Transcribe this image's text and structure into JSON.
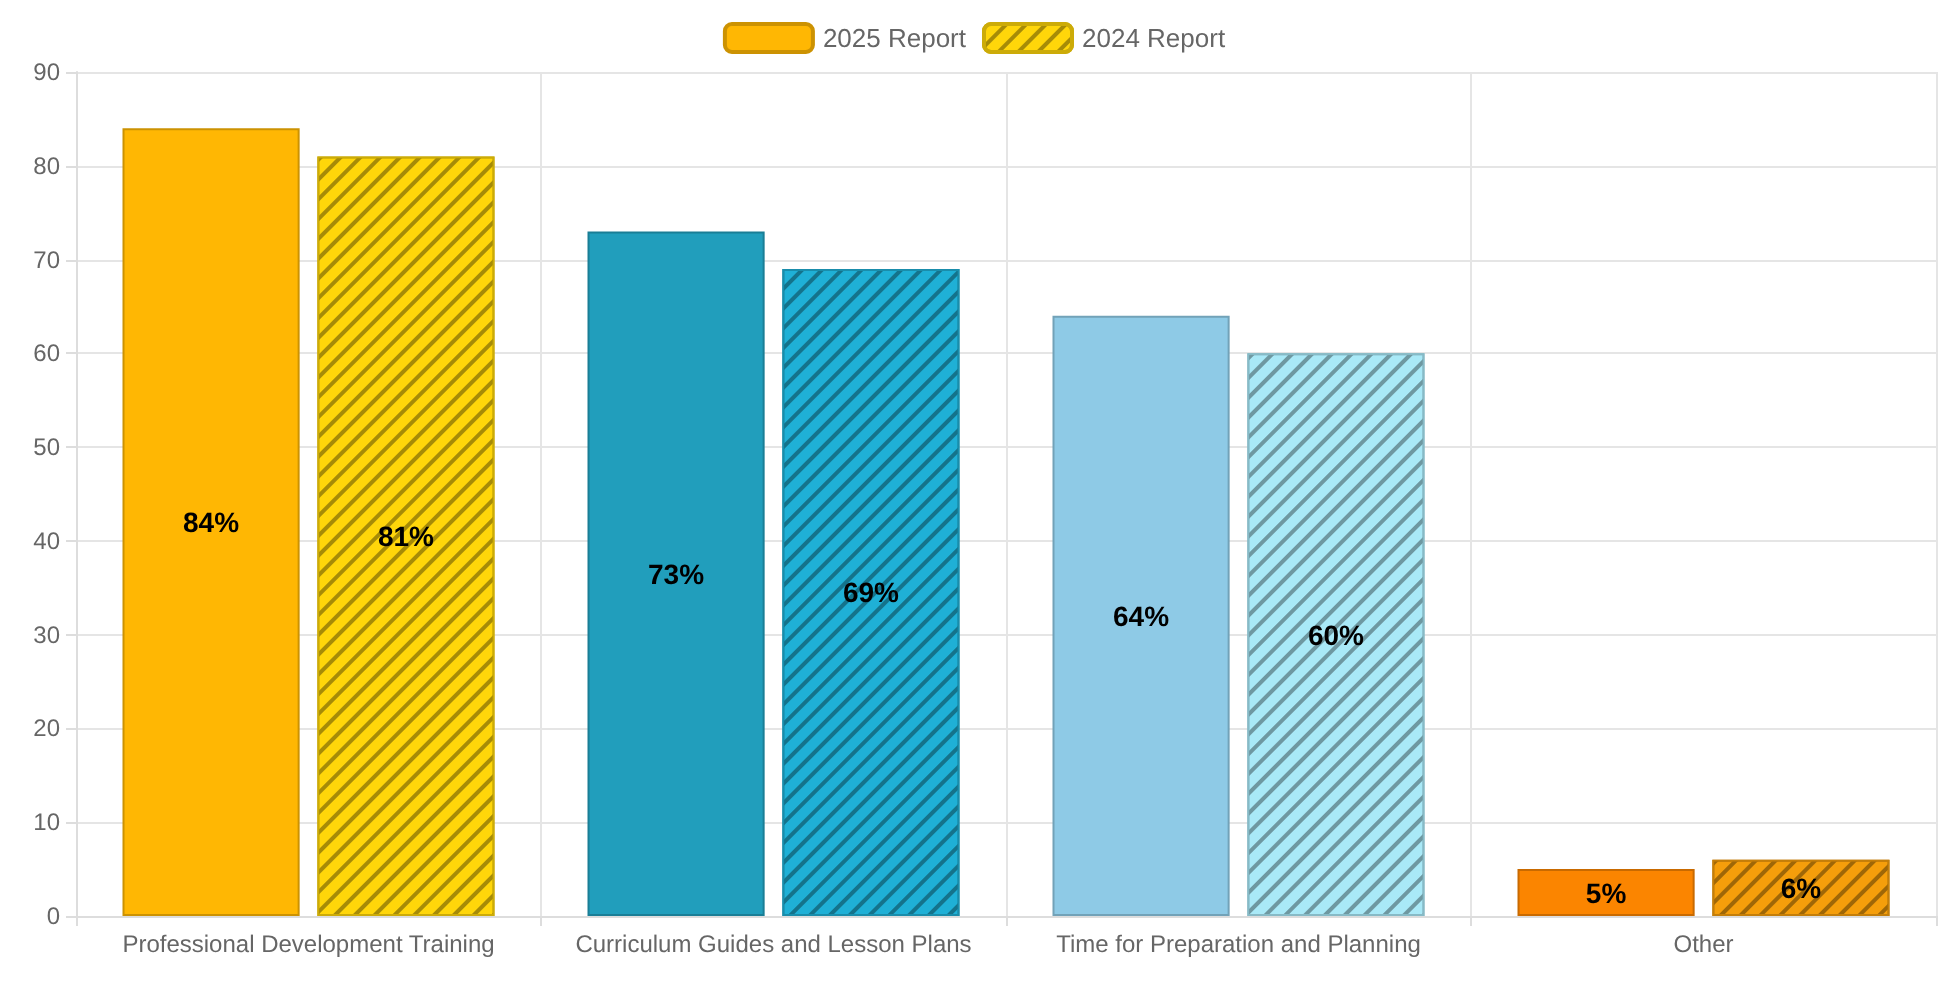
{
  "chart_data": {
    "type": "bar",
    "categories": [
      "Professional Development Training",
      "Curriculum Guides and Lesson Plans",
      "Time for Preparation and Planning",
      "Other"
    ],
    "series": [
      {
        "name": "2025 Report",
        "color": "#ffb703",
        "colors": [
          "#ffb703",
          "#219ebc",
          "#8ecae6",
          "#fb8500"
        ],
        "values": [
          84,
          73,
          64,
          5
        ],
        "value_labels": [
          "84%",
          "73%",
          "64%",
          "5%"
        ]
      },
      {
        "name": "2024 Report",
        "color": "#ffd60a",
        "colors": [
          "#ffd60a",
          "#1fb0d6",
          "#a9e9f7",
          "#f59e0b"
        ],
        "values": [
          81,
          69,
          60,
          6
        ],
        "value_labels": [
          "81%",
          "69%",
          "60%",
          "6%"
        ]
      }
    ],
    "ylim": [
      0,
      90
    ],
    "yticks": [
      0,
      10,
      20,
      30,
      40,
      50,
      60,
      70,
      80,
      90
    ],
    "grid": true,
    "legend": "top"
  }
}
